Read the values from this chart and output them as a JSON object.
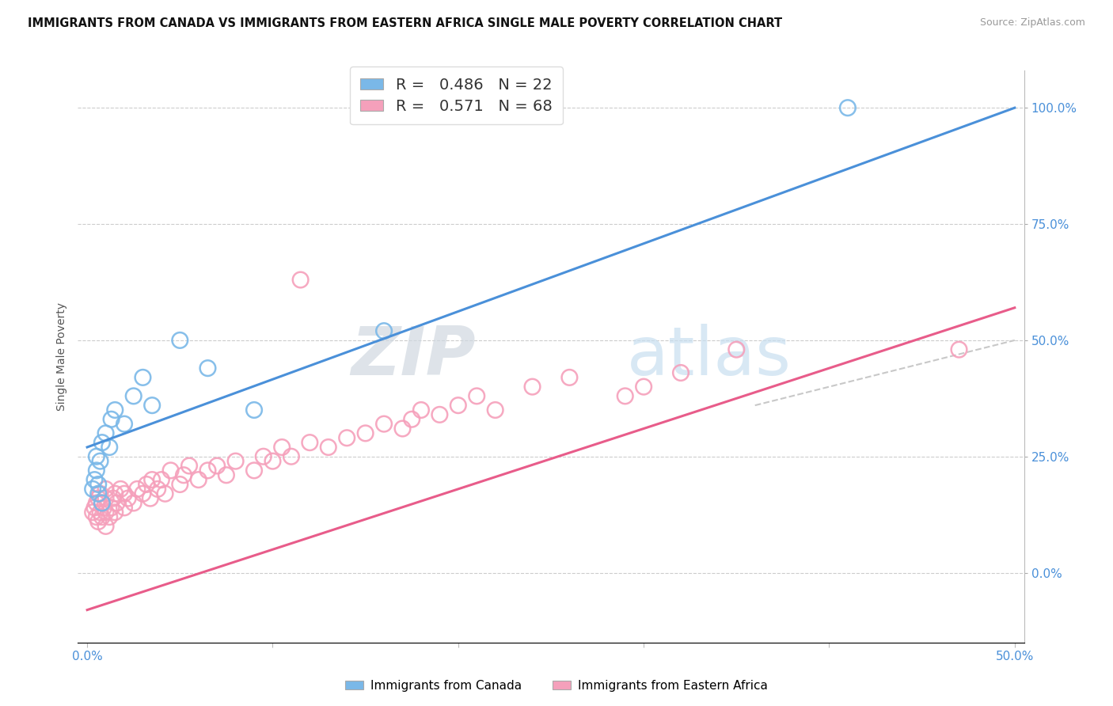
{
  "title": "IMMIGRANTS FROM CANADA VS IMMIGRANTS FROM EASTERN AFRICA SINGLE MALE POVERTY CORRELATION CHART",
  "source": "Source: ZipAtlas.com",
  "ylabel": "Single Male Poverty",
  "yaxis_labels": [
    "100.0%",
    "75.0%",
    "50.0%",
    "25.0%",
    "0.0%"
  ],
  "yaxis_values": [
    1.0,
    0.75,
    0.5,
    0.25,
    0.0
  ],
  "xlim": [
    0.0,
    0.5
  ],
  "ylim": [
    -0.15,
    1.08
  ],
  "canada_R": 0.486,
  "canada_N": 22,
  "africa_R": 0.571,
  "africa_N": 68,
  "canada_color": "#7ab8e8",
  "africa_color": "#f5a0bb",
  "canada_line_color": "#4a90d9",
  "africa_line_color": "#e85c8a",
  "diag_line_color": "#c8c8c8",
  "background_color": "#ffffff",
  "canada_line_x0": 0.0,
  "canada_line_y0": 0.27,
  "canada_line_x1": 0.5,
  "canada_line_y1": 1.0,
  "africa_line_x0": 0.0,
  "africa_line_y0": -0.08,
  "africa_line_x1": 0.5,
  "africa_line_y1": 0.57,
  "diag_line_x0": 0.36,
  "diag_line_y0": 0.36,
  "diag_line_x1": 0.5,
  "diag_line_y1": 0.5,
  "canada_scatter_x": [
    0.003,
    0.004,
    0.005,
    0.005,
    0.006,
    0.006,
    0.007,
    0.008,
    0.008,
    0.01,
    0.012,
    0.013,
    0.015,
    0.02,
    0.025,
    0.03,
    0.035,
    0.05,
    0.065,
    0.09,
    0.16,
    0.41
  ],
  "canada_scatter_y": [
    0.18,
    0.2,
    0.22,
    0.25,
    0.17,
    0.19,
    0.24,
    0.15,
    0.28,
    0.3,
    0.27,
    0.33,
    0.35,
    0.32,
    0.38,
    0.42,
    0.36,
    0.5,
    0.44,
    0.35,
    0.52,
    1.0
  ],
  "africa_scatter_x": [
    0.003,
    0.004,
    0.005,
    0.005,
    0.006,
    0.006,
    0.007,
    0.007,
    0.008,
    0.008,
    0.009,
    0.01,
    0.01,
    0.01,
    0.01,
    0.012,
    0.013,
    0.014,
    0.015,
    0.015,
    0.016,
    0.018,
    0.02,
    0.02,
    0.022,
    0.025,
    0.027,
    0.03,
    0.032,
    0.034,
    0.035,
    0.038,
    0.04,
    0.042,
    0.045,
    0.05,
    0.052,
    0.055,
    0.06,
    0.065,
    0.07,
    0.075,
    0.08,
    0.09,
    0.095,
    0.1,
    0.105,
    0.11,
    0.115,
    0.12,
    0.13,
    0.14,
    0.15,
    0.16,
    0.17,
    0.175,
    0.18,
    0.19,
    0.2,
    0.21,
    0.22,
    0.24,
    0.26,
    0.29,
    0.3,
    0.32,
    0.35,
    0.47
  ],
  "africa_scatter_y": [
    0.13,
    0.14,
    0.12,
    0.15,
    0.11,
    0.16,
    0.13,
    0.17,
    0.12,
    0.15,
    0.14,
    0.1,
    0.13,
    0.16,
    0.18,
    0.12,
    0.14,
    0.16,
    0.13,
    0.17,
    0.15,
    0.18,
    0.14,
    0.17,
    0.16,
    0.15,
    0.18,
    0.17,
    0.19,
    0.16,
    0.2,
    0.18,
    0.2,
    0.17,
    0.22,
    0.19,
    0.21,
    0.23,
    0.2,
    0.22,
    0.23,
    0.21,
    0.24,
    0.22,
    0.25,
    0.24,
    0.27,
    0.25,
    0.63,
    0.28,
    0.27,
    0.29,
    0.3,
    0.32,
    0.31,
    0.33,
    0.35,
    0.34,
    0.36,
    0.38,
    0.35,
    0.4,
    0.42,
    0.38,
    0.4,
    0.43,
    0.48,
    0.48
  ],
  "watermark_zip": "ZIP",
  "watermark_atlas": "atlas",
  "title_fontsize": 10.5,
  "axis_label_fontsize": 10,
  "legend_fontsize": 14
}
